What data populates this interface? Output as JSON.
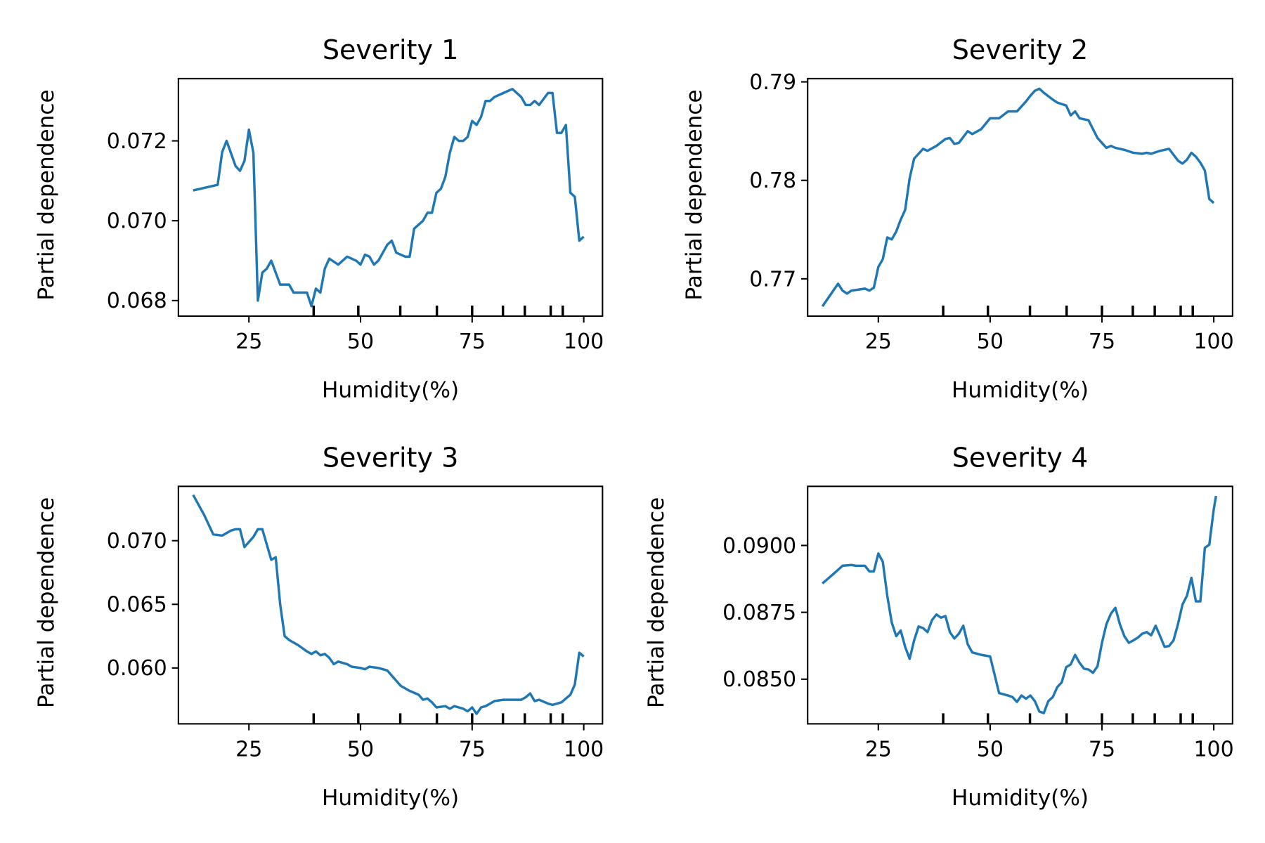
{
  "chart_data": [
    {
      "type": "line",
      "title": "Severity 1",
      "xlabel": "Humidity(%)",
      "ylabel": "Partial dependence",
      "color": "#1f77b4",
      "xlim": [
        9.2,
        104.2
      ],
      "xticks": [
        25,
        50,
        75,
        100
      ],
      "ylim": [
        0.06761,
        0.07356
      ],
      "yticks": [
        0.068,
        {
          "value": 0.07,
          "label": "0.070"
        },
        0.072
      ],
      "deciles": [
        39.5,
        49.5,
        58.9,
        67.1,
        75,
        81.9,
        86.8,
        92.6,
        95.3
      ],
      "x": [
        12.5,
        18,
        19,
        20,
        22,
        23,
        24,
        25,
        26,
        27,
        28,
        29,
        30,
        31,
        32,
        34,
        35,
        36,
        37,
        38,
        39,
        40,
        41,
        42,
        43,
        45,
        47,
        49,
        50,
        51,
        52,
        53,
        54,
        56,
        57,
        58,
        60,
        61,
        62,
        63,
        64,
        65,
        66,
        67,
        68,
        69,
        70,
        71,
        72,
        73,
        74,
        75,
        76,
        77,
        78,
        79,
        80,
        82,
        84,
        86,
        87,
        88,
        89,
        90,
        92,
        93,
        94,
        95,
        96,
        97,
        98,
        99,
        100
      ],
      "values": [
        0.07076,
        0.0709,
        0.07172,
        0.072,
        0.07137,
        0.07125,
        0.0715,
        0.07228,
        0.0717,
        0.068,
        0.0687,
        0.0688,
        0.069,
        0.0687,
        0.0684,
        0.0684,
        0.0682,
        0.0682,
        0.0682,
        0.0682,
        0.06786,
        0.0683,
        0.0682,
        0.0688,
        0.06905,
        0.0689,
        0.0691,
        0.069,
        0.0689,
        0.06915,
        0.0691,
        0.0689,
        0.069,
        0.0694,
        0.0695,
        0.0692,
        0.0691,
        0.0691,
        0.0698,
        0.0699,
        0.07,
        0.0702,
        0.0702,
        0.0707,
        0.0708,
        0.0711,
        0.0717,
        0.0721,
        0.072,
        0.072,
        0.0721,
        0.0725,
        0.0724,
        0.0726,
        0.073,
        0.073,
        0.0731,
        0.0732,
        0.0733,
        0.0731,
        0.0729,
        0.0729,
        0.073,
        0.0729,
        0.0732,
        0.0732,
        0.0722,
        0.0722,
        0.0724,
        0.0707,
        0.0706,
        0.0695,
        0.0696
      ]
    },
    {
      "type": "line",
      "title": "Severity 2",
      "xlabel": "Humidity(%)",
      "ylabel": "Partial dependence",
      "color": "#1f77b4",
      "xlim": [
        9.2,
        104.2
      ],
      "xticks": [
        25,
        50,
        75,
        100
      ],
      "ylim": [
        0.76621,
        0.79033
      ],
      "yticks": [
        0.77,
        0.78,
        0.79
      ],
      "deciles": [
        39.5,
        49.5,
        58.9,
        67.1,
        75,
        81.9,
        86.8,
        92.6,
        95.3
      ],
      "x": [
        12.5,
        16,
        17,
        18,
        19,
        22,
        23,
        24,
        25,
        26,
        27,
        28,
        29,
        30,
        31,
        32,
        33,
        35,
        36,
        38,
        40,
        41,
        42,
        43,
        45,
        46,
        48,
        50,
        52,
        54,
        56,
        57,
        58,
        59,
        60,
        61,
        62,
        64,
        65,
        67,
        68,
        69,
        70,
        72,
        73,
        74,
        76,
        77,
        78,
        80,
        82,
        84,
        85,
        86,
        88,
        89,
        90,
        92,
        93,
        94,
        95,
        96,
        97,
        98,
        99,
        100
      ],
      "values": [
        0.7672,
        0.7695,
        0.7688,
        0.7685,
        0.7688,
        0.769,
        0.7688,
        0.7691,
        0.7712,
        0.772,
        0.7742,
        0.774,
        0.7748,
        0.776,
        0.777,
        0.7802,
        0.7822,
        0.7832,
        0.783,
        0.7835,
        0.7842,
        0.7843,
        0.7837,
        0.7838,
        0.785,
        0.7847,
        0.7852,
        0.7863,
        0.7863,
        0.787,
        0.787,
        0.7875,
        0.788,
        0.7886,
        0.7891,
        0.7893,
        0.7889,
        0.7882,
        0.7879,
        0.7876,
        0.7866,
        0.787,
        0.7863,
        0.7861,
        0.7852,
        0.7843,
        0.7833,
        0.7835,
        0.7833,
        0.7831,
        0.7828,
        0.7827,
        0.7828,
        0.7827,
        0.783,
        0.7831,
        0.7832,
        0.782,
        0.7817,
        0.7821,
        0.7828,
        0.7824,
        0.7818,
        0.781,
        0.7781,
        0.7777
      ]
    },
    {
      "type": "line",
      "title": "Severity 3",
      "xlabel": "Humidity(%)",
      "ylabel": "Partial dependence",
      "color": "#1f77b4",
      "xlim": [
        9.2,
        104.2
      ],
      "xticks": [
        25,
        50,
        75,
        100
      ],
      "ylim": [
        0.05561,
        0.07427
      ],
      "yticks": [
        {
          "value": 0.06,
          "label": "0.060"
        },
        0.065,
        {
          "value": 0.07,
          "label": "0.070"
        }
      ],
      "deciles": [
        39.5,
        49.5,
        58.9,
        67.1,
        75,
        81.9,
        86.8,
        92.6,
        95.3
      ],
      "x": [
        12.5,
        15,
        17,
        19,
        21,
        22,
        23,
        24,
        25,
        26,
        27,
        28,
        30,
        31,
        32,
        33,
        34,
        36,
        38,
        39,
        40,
        41,
        42,
        43,
        44,
        45,
        47,
        48,
        50,
        51,
        52,
        54,
        56,
        57,
        59,
        60,
        61,
        63,
        64,
        65,
        66,
        67,
        69,
        70,
        71,
        73,
        74,
        75,
        76,
        77,
        78,
        79,
        80,
        82,
        84,
        86,
        87,
        88,
        89,
        90,
        92,
        93,
        94,
        95,
        96,
        97,
        98,
        99,
        100
      ],
      "values": [
        0.0736,
        0.072,
        0.0705,
        0.0704,
        0.0708,
        0.0709,
        0.0709,
        0.0695,
        0.0699,
        0.0703,
        0.0709,
        0.0709,
        0.0685,
        0.0687,
        0.065,
        0.0625,
        0.0622,
        0.0618,
        0.0613,
        0.0611,
        0.0613,
        0.061,
        0.0611,
        0.0608,
        0.0603,
        0.0605,
        0.0603,
        0.0601,
        0.06,
        0.0599,
        0.0601,
        0.06,
        0.0598,
        0.0594,
        0.0586,
        0.0584,
        0.0582,
        0.0579,
        0.0575,
        0.0576,
        0.0573,
        0.0569,
        0.057,
        0.0568,
        0.057,
        0.0568,
        0.0566,
        0.0569,
        0.0564,
        0.0569,
        0.057,
        0.0572,
        0.0574,
        0.0575,
        0.0575,
        0.0575,
        0.0577,
        0.058,
        0.0574,
        0.0575,
        0.0572,
        0.0571,
        0.0572,
        0.0573,
        0.0576,
        0.0579,
        0.0587,
        0.0612,
        0.0609
      ]
    },
    {
      "type": "line",
      "title": "Severity 4",
      "xlabel": "Humidity(%)",
      "ylabel": "Partial dependence",
      "color": "#1f77b4",
      "xlim": [
        9.2,
        104.2
      ],
      "xticks": [
        25,
        50,
        75,
        100
      ],
      "ylim": [
        0.08333,
        0.09221
      ],
      "yticks": [
        {
          "value": 0.085,
          "label": "0.0850"
        },
        0.0875,
        {
          "value": 0.09,
          "label": "0.0900"
        }
      ],
      "deciles": [
        39.5,
        49.5,
        58.9,
        67.1,
        75,
        81.9,
        86.8,
        92.6,
        95.3
      ],
      "x": [
        12.5,
        15,
        17,
        19,
        20,
        22,
        23,
        24,
        25,
        26,
        27,
        28,
        29,
        30,
        31,
        32,
        33,
        34,
        35,
        36,
        37,
        38,
        39,
        40,
        41,
        42,
        43,
        44,
        45,
        46,
        48,
        50,
        52,
        54,
        55,
        56,
        57,
        58,
        59,
        60,
        61,
        62,
        63,
        64,
        65,
        66,
        67,
        68,
        69,
        70,
        71,
        72,
        73,
        74,
        75,
        76,
        77,
        78,
        79,
        80,
        81,
        82,
        83,
        84,
        85,
        86,
        87,
        88,
        89,
        90,
        91,
        92,
        93,
        94,
        95,
        96,
        97,
        98,
        99,
        100,
        100.5
      ],
      "values": [
        0.08858,
        0.08894,
        0.08924,
        0.08927,
        0.08924,
        0.08924,
        0.08903,
        0.08903,
        0.0897,
        0.08939,
        0.08812,
        0.08712,
        0.08661,
        0.08682,
        0.08621,
        0.08576,
        0.08645,
        0.08697,
        0.08691,
        0.08676,
        0.08721,
        0.08742,
        0.0873,
        0.08736,
        0.08676,
        0.08652,
        0.0867,
        0.087,
        0.0863,
        0.086,
        0.08591,
        0.08585,
        0.08448,
        0.08439,
        0.08433,
        0.08415,
        0.08439,
        0.08427,
        0.08439,
        0.08418,
        0.08379,
        0.08373,
        0.08418,
        0.08433,
        0.0847,
        0.08488,
        0.08545,
        0.08555,
        0.08591,
        0.08561,
        0.08539,
        0.08536,
        0.08524,
        0.08548,
        0.08636,
        0.08706,
        0.08745,
        0.08767,
        0.08706,
        0.08661,
        0.08636,
        0.08645,
        0.08655,
        0.0867,
        0.08676,
        0.08664,
        0.087,
        0.08661,
        0.08621,
        0.08624,
        0.08645,
        0.08706,
        0.08779,
        0.08812,
        0.08879,
        0.08791,
        0.08791,
        0.08991,
        0.09003,
        0.09136,
        0.09185
      ]
    }
  ]
}
